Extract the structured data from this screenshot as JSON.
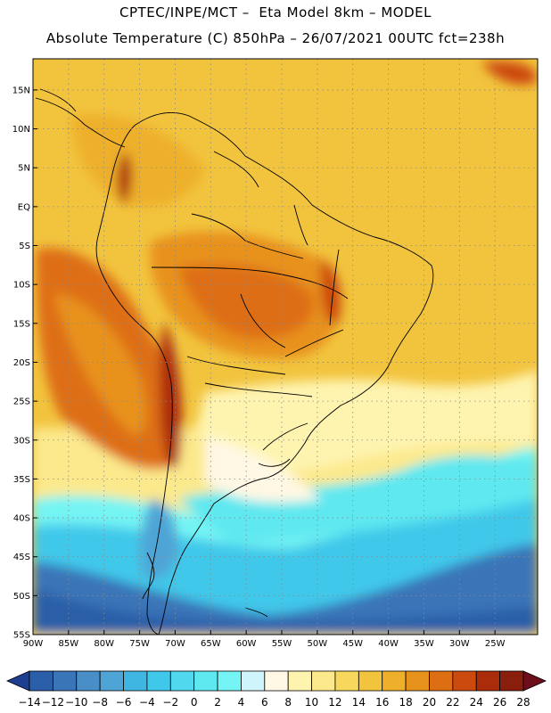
{
  "header": {
    "line1": "CPTEC/INPE/MCT –  Eta Model 8km – MODEL",
    "line2": "Absolute Temperature (C) 850hPa – 26/07/2021 00UTC fct=238h"
  },
  "map": {
    "lon_range": [
      -90,
      -19
    ],
    "lat_range": [
      -55,
      19
    ],
    "lat_labels": [
      "15N",
      "10N",
      "5N",
      "EQ",
      "5S",
      "10S",
      "15S",
      "20S",
      "25S",
      "30S",
      "35S",
      "40S",
      "45S",
      "50S",
      "55S"
    ],
    "lat_values": [
      15,
      10,
      5,
      0,
      -5,
      -10,
      -15,
      -20,
      -25,
      -30,
      -35,
      -40,
      -45,
      -50,
      -55
    ],
    "lon_labels": [
      "90W",
      "85W",
      "80W",
      "75W",
      "70W",
      "65W",
      "60W",
      "55W",
      "50W",
      "45W",
      "40W",
      "35W",
      "30W",
      "25W"
    ],
    "lon_values": [
      -90,
      -85,
      -80,
      -75,
      -70,
      -65,
      -60,
      -55,
      -50,
      -45,
      -40,
      -35,
      -30,
      -25
    ]
  },
  "colorbar": {
    "labels": [
      "-14",
      "-12",
      "-10",
      "-8",
      "-6",
      "-4",
      "-2",
      "0",
      "2",
      "4",
      "6",
      "8",
      "10",
      "12",
      "14",
      "16",
      "18",
      "20",
      "22",
      "24",
      "26",
      "28"
    ],
    "colors": [
      "#1e3e8f",
      "#2b5ea8",
      "#3a75b8",
      "#4a8ec8",
      "#4fa4d6",
      "#3fb6e2",
      "#40c8ea",
      "#4fd8ee",
      "#5ee8f0",
      "#74f4f4",
      "#cff4fb",
      "#fff8e4",
      "#fef4b0",
      "#fce98c",
      "#f8d85c",
      "#f2c43e",
      "#eeb02a",
      "#e8921e",
      "#de6e14",
      "#cc4a0e",
      "#ab2c0a",
      "#8a1e0c",
      "#6e0e1a"
    ]
  }
}
